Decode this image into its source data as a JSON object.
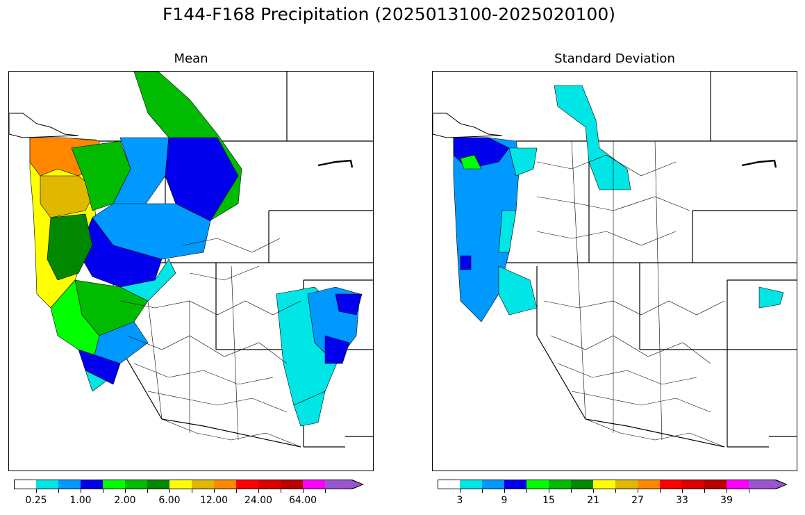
{
  "figure_title": "F144-F168 Precipitation (2025013100-2025020100)",
  "panels": [
    {
      "title": "Mean",
      "colorbar": {
        "colors": [
          "#ffffff",
          "#00e5e5",
          "#0099ff",
          "#0000ee",
          "#00ff00",
          "#00bb00",
          "#008800",
          "#ffff00",
          "#e0b800",
          "#ff8800",
          "#ff0000",
          "#dd0000",
          "#bb0000",
          "#ff00ff",
          "#9955cc"
        ],
        "tick_labels": [
          "0.25",
          "1.00",
          "2.00",
          "6.00",
          "12.00",
          "24.00",
          "64.00"
        ],
        "extend": "max"
      }
    },
    {
      "title": "Standard Deviation",
      "colorbar": {
        "colors": [
          "#ffffff",
          "#00e5e5",
          "#0099ff",
          "#0000ee",
          "#00ff00",
          "#00bb00",
          "#008800",
          "#ffff00",
          "#e0b800",
          "#ff8800",
          "#ff0000",
          "#dd0000",
          "#bb0000",
          "#ff00ff",
          "#9955cc"
        ],
        "tick_labels": [
          "3",
          "9",
          "15",
          "21",
          "27",
          "33",
          "39"
        ],
        "extend": "max"
      }
    }
  ]
}
